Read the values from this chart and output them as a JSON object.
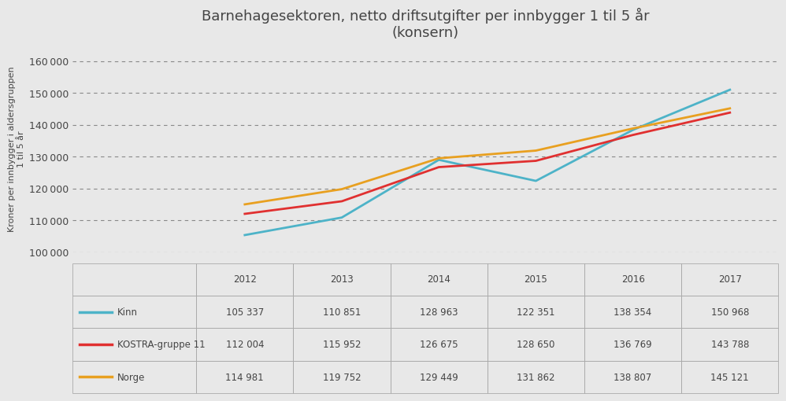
{
  "title": "Barnehagesektoren, netto driftsutgifter per innbygger 1 til 5 år\n(konsern)",
  "ylabel_top": "Kroner per innbygger i aldersgruppen",
  "ylabel_bottom": "1 til 5 år",
  "years": [
    2012,
    2013,
    2014,
    2015,
    2016,
    2017
  ],
  "series": [
    {
      "name": "Kinn",
      "color": "#4db3c8",
      "values": [
        105337,
        110851,
        128963,
        122351,
        138354,
        150968
      ]
    },
    {
      "name": "KOSTRA-gruppe 11",
      "color": "#e03030",
      "values": [
        112004,
        115952,
        126675,
        128650,
        136769,
        143788
      ]
    },
    {
      "name": "Norge",
      "color": "#e8a020",
      "values": [
        114981,
        119752,
        129449,
        131862,
        138807,
        145121
      ]
    }
  ],
  "ylim": [
    100000,
    165000
  ],
  "yticks": [
    100000,
    110000,
    120000,
    130000,
    140000,
    150000,
    160000
  ],
  "background_color": "#e8e8e8",
  "plot_bg_color": "#e8e8e8",
  "table_rows": [
    [
      "105 337",
      "110 851",
      "128 963",
      "122 351",
      "138 354",
      "150 968"
    ],
    [
      "112 004",
      "115 952",
      "126 675",
      "128 650",
      "136 769",
      "143 788"
    ],
    [
      "114 981",
      "119 752",
      "129 449",
      "131 862",
      "138 807",
      "145 121"
    ]
  ],
  "title_fontsize": 13,
  "tick_fontsize": 9,
  "table_fontsize": 8.5
}
